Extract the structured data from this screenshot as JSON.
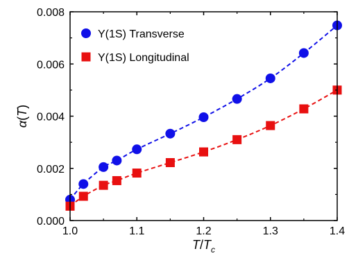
{
  "chart_data": {
    "type": "scatter",
    "xlabel": {
      "main": "T",
      "sep": "/",
      "den": "T",
      "sub": "c"
    },
    "ylabel": {
      "fn": "α",
      "open": "(",
      "arg": "T",
      "close": ")"
    },
    "xlim": [
      1.0,
      1.4
    ],
    "ylim": [
      0.0,
      0.008
    ],
    "xticks": [
      1.0,
      1.1,
      1.2,
      1.3,
      1.4
    ],
    "xtick_labels": [
      "1.0",
      "1.1",
      "1.2",
      "1.3",
      "1.4"
    ],
    "yticks": [
      0.0,
      0.002,
      0.004,
      0.006,
      0.008
    ],
    "ytick_labels": [
      "0.000",
      "0.002",
      "0.004",
      "0.006",
      "0.008"
    ],
    "grid": false,
    "legend_position": "top-left",
    "series": [
      {
        "name": "Υ(1S) Transverse",
        "marker": "circle",
        "color": "#1010e8",
        "fit_line": "dashed",
        "x": [
          1.0,
          1.02,
          1.05,
          1.07,
          1.1,
          1.15,
          1.2,
          1.25,
          1.3,
          1.35,
          1.4
        ],
        "y": [
          0.0008,
          0.0014,
          0.00205,
          0.0023,
          0.00273,
          0.00333,
          0.00396,
          0.00466,
          0.00545,
          0.00642,
          0.00748
        ]
      },
      {
        "name": "Υ(1S) Longitudinal",
        "marker": "square",
        "color": "#e81010",
        "fit_line": "dashed",
        "x": [
          1.0,
          1.02,
          1.05,
          1.07,
          1.1,
          1.15,
          1.2,
          1.25,
          1.3,
          1.35,
          1.4
        ],
        "y": [
          0.00055,
          0.00093,
          0.00135,
          0.00153,
          0.00182,
          0.00222,
          0.00263,
          0.0031,
          0.00364,
          0.00428,
          0.005
        ]
      }
    ]
  }
}
